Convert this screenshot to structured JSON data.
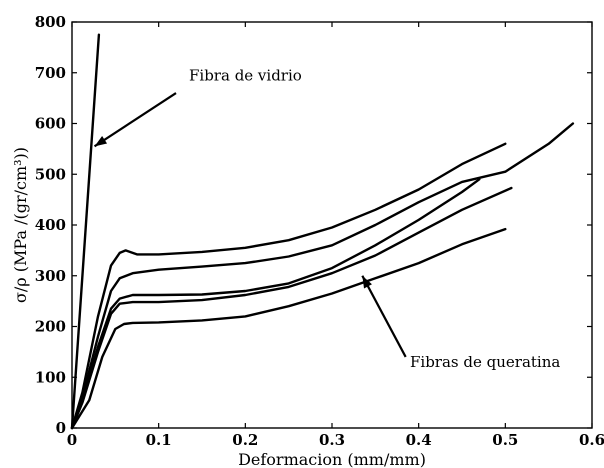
{
  "chart_data": {
    "type": "line",
    "xlabel": "Deformacion (mm/mm)",
    "ylabel": "σ/ρ (MPa /(gr/cm³))",
    "xlim": [
      0,
      0.6
    ],
    "ylim": [
      0,
      800
    ],
    "x_ticks": [
      "0",
      "0.1",
      "0.2",
      "0.3",
      "0.4",
      "0.5",
      "0.6"
    ],
    "y_ticks": [
      "0",
      "100",
      "200",
      "300",
      "400",
      "500",
      "600",
      "700",
      "800"
    ],
    "grid": false,
    "legend": "none",
    "series": [
      {
        "x": [
          0,
          0.031
        ],
        "y": [
          0,
          775
        ]
      },
      {
        "x": [
          0,
          0.012,
          0.03,
          0.045,
          0.055,
          0.062,
          0.075,
          0.1,
          0.15,
          0.2,
          0.25,
          0.3,
          0.35,
          0.4,
          0.45,
          0.5
        ],
        "y": [
          0,
          70,
          220,
          320,
          345,
          350,
          342,
          342,
          347,
          355,
          370,
          395,
          430,
          470,
          520,
          560
        ]
      },
      {
        "x": [
          0,
          0.012,
          0.03,
          0.045,
          0.055,
          0.07,
          0.1,
          0.15,
          0.2,
          0.25,
          0.3,
          0.35,
          0.4,
          0.45,
          0.5,
          0.55,
          0.578
        ],
        "y": [
          0,
          60,
          180,
          270,
          295,
          305,
          312,
          318,
          325,
          338,
          360,
          400,
          445,
          485,
          505,
          560,
          600
        ]
      },
      {
        "x": [
          0,
          0.012,
          0.03,
          0.045,
          0.055,
          0.07,
          0.1,
          0.15,
          0.2,
          0.25,
          0.3,
          0.35,
          0.4,
          0.45,
          0.47
        ],
        "y": [
          0,
          55,
          160,
          235,
          255,
          262,
          262,
          263,
          270,
          285,
          315,
          360,
          410,
          465,
          490
        ]
      },
      {
        "x": [
          0,
          0.012,
          0.03,
          0.045,
          0.055,
          0.07,
          0.1,
          0.15,
          0.2,
          0.25,
          0.3,
          0.35,
          0.4,
          0.45,
          0.507
        ],
        "y": [
          0,
          50,
          150,
          225,
          245,
          248,
          248,
          252,
          262,
          278,
          305,
          340,
          385,
          430,
          473
        ]
      },
      {
        "x": [
          0,
          0.02,
          0.035,
          0.05,
          0.06,
          0.07,
          0.1,
          0.15,
          0.2,
          0.25,
          0.3,
          0.35,
          0.4,
          0.45,
          0.5
        ],
        "y": [
          0,
          55,
          140,
          195,
          205,
          207,
          208,
          212,
          220,
          240,
          265,
          295,
          325,
          362,
          392
        ]
      }
    ],
    "annotations": [
      {
        "text": "Fibra de vidrio",
        "x": 0.135,
        "y": 685,
        "arrow_from": [
          0.12,
          660
        ],
        "arrow_to": [
          0.026,
          555
        ]
      },
      {
        "text": "Fibras de queratina",
        "x": 0.39,
        "y": 120,
        "arrow_from": [
          0.385,
          140
        ],
        "arrow_to": [
          0.335,
          300
        ]
      }
    ]
  }
}
